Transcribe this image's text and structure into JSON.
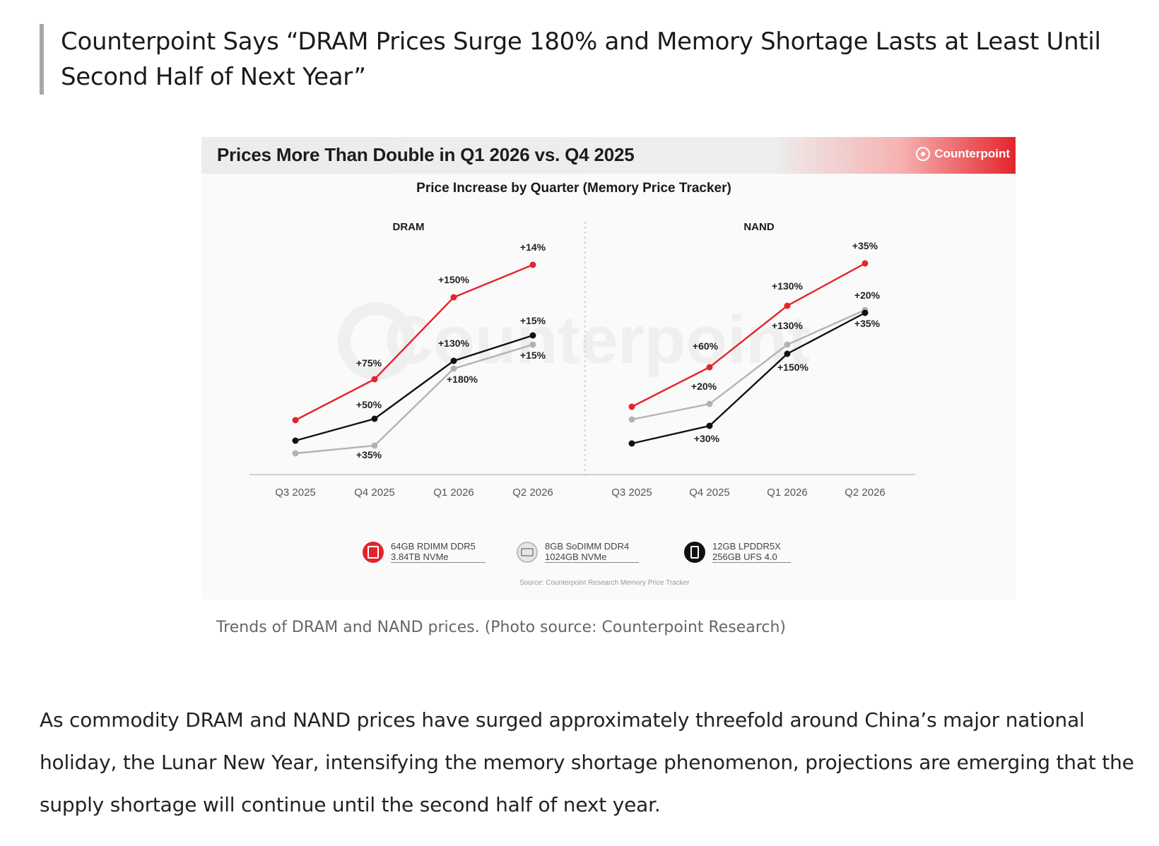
{
  "article": {
    "title": "Counterpoint Says “DRAM Prices Surge 180% and Memory Shortage Lasts at Least Until Second Half of Next Year”",
    "caption": "Trends of DRAM and NAND prices. (Photo source: Counterpoint Research)",
    "body": "As commodity DRAM and NAND prices have surged approximately threefold around China’s major national holiday, the Lunar New Year, intensifying the memory shortage phenomenon, projections are emerging that the supply shortage will continue until the second half of next year."
  },
  "figure": {
    "banner_title": "Prices More Than Double in Q1 2026 vs. Q4 2025",
    "brand": "Counterpoint",
    "watermark": "Counterpoint",
    "source": "Source: Counterpoint Research Memory Price Tracker",
    "colors": {
      "red": "#e4242b",
      "gray": "#b3b3b3",
      "black": "#111111",
      "banner_accent": "#e4242b"
    }
  },
  "chart_data": {
    "type": "line",
    "title": "Price Increase by Quarter (Memory Price Tracker)",
    "categories": [
      "Q3 2025",
      "Q4 2025",
      "Q1 2026",
      "Q2 2026"
    ],
    "panels": [
      {
        "name": "DRAM",
        "series": [
          {
            "color": "red",
            "legend_index": 0,
            "labels": [
              "+75%",
              "+150%",
              "+14%"
            ]
          },
          {
            "color": "black",
            "legend_index": 2,
            "labels": [
              "+50%",
              "+130%",
              "+15%"
            ]
          },
          {
            "color": "gray",
            "legend_index": 1,
            "labels": [
              "+35%",
              "+180%",
              "+15%"
            ]
          }
        ]
      },
      {
        "name": "NAND",
        "series": [
          {
            "color": "red",
            "legend_index": 0,
            "labels": [
              "+60%",
              "+130%",
              "+35%"
            ]
          },
          {
            "color": "gray",
            "legend_index": 1,
            "labels": [
              "+20%",
              "+130%",
              "+20%"
            ]
          },
          {
            "color": "black",
            "legend_index": 2,
            "labels": [
              "+30%",
              "+150%",
              "+35%"
            ]
          }
        ]
      }
    ],
    "legend": [
      {
        "color": "red",
        "icon": "memory-chip-icon",
        "line1": "64GB RDIMM DDR5",
        "line2": "3.84TB NVMe"
      },
      {
        "color": "gray",
        "icon": "memory-module-icon",
        "line1": "8GB SoDIMM DDR4",
        "line2": "1024GB NVMe"
      },
      {
        "color": "black",
        "icon": "smartphone-icon",
        "line1": "12GB LPDDR5X",
        "line2": "256GB UFS 4.0"
      }
    ]
  }
}
